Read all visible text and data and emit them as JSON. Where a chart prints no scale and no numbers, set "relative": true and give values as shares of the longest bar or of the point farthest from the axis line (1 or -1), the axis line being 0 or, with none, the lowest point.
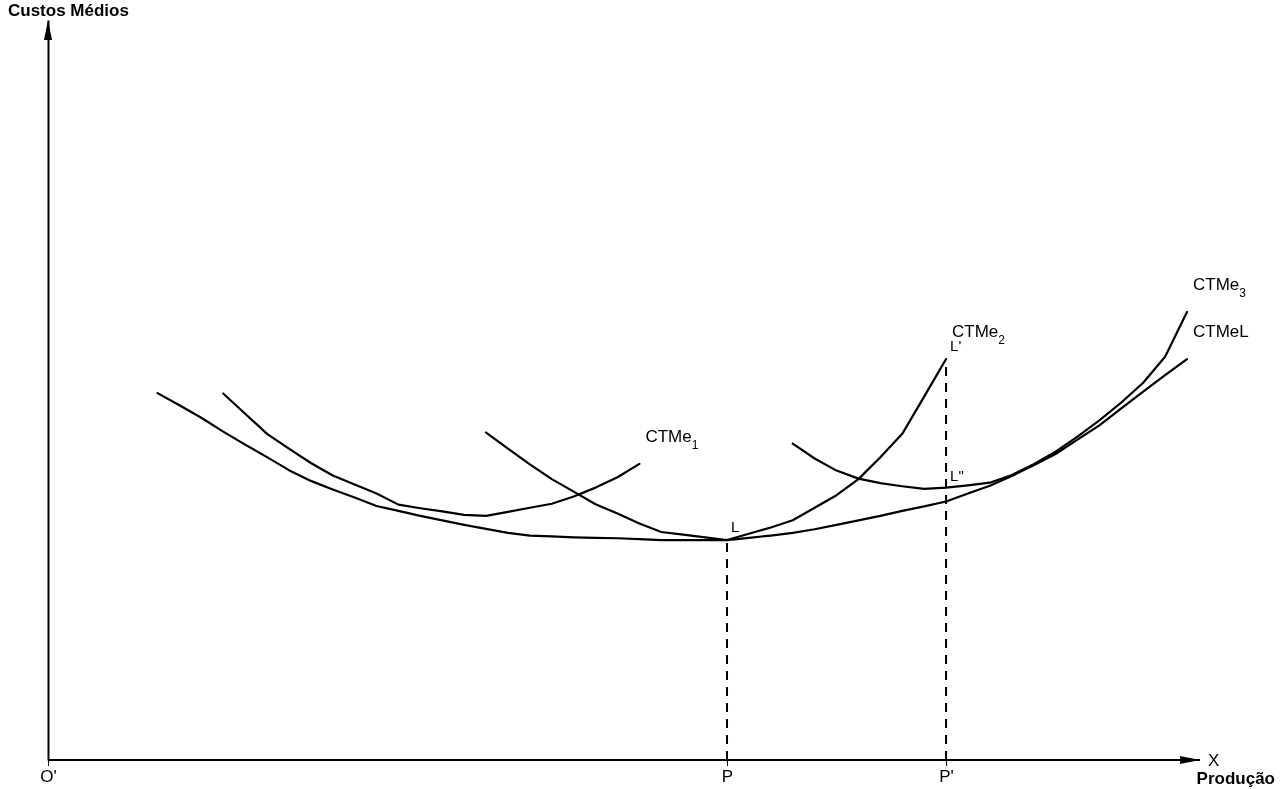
{
  "chart_data": {
    "type": "line",
    "relative": true,
    "xlabel": "Produção",
    "legend": false,
    "marker": "none",
    "categories": [
      "O'",
      null,
      null,
      null,
      null,
      null,
      null,
      null,
      null,
      null,
      null,
      null,
      null,
      null,
      null,
      null,
      null,
      null,
      null,
      null,
      null,
      null,
      null,
      null,
      null,
      null,
      null,
      null,
      null,
      null,
      null,
      "P",
      null,
      null,
      null,
      null,
      null,
      null,
      null,
      null,
      null,
      "P'",
      null,
      null,
      null,
      null,
      null,
      null,
      null,
      null,
      null,
      null,
      null
    ],
    "series": [
      {
        "name": "CTMeL",
        "color": "#000000",
        "values": [
          null,
          null,
          null,
          null,
          null,
          0.819,
          0.792,
          0.764,
          0.733,
          0.704,
          0.676,
          0.647,
          0.623,
          0.604,
          0.586,
          0.567,
          0.556,
          0.545,
          0.535,
          0.525,
          0.516,
          0.507,
          0.501,
          0.499,
          0.497,
          0.496,
          0.495,
          0.493,
          0.491,
          0.491,
          0.491,
          0.491,
          0.496,
          0.501,
          0.507,
          0.515,
          0.525,
          0.535,
          0.545,
          0.556,
          0.566,
          0.577,
          0.595,
          0.612,
          0.634,
          0.658,
          0.683,
          0.715,
          0.747,
          0.785,
          0.822,
          0.859,
          0.895
        ]
      },
      {
        "name": "CTMe$_{1}$",
        "color": "#000000",
        "values": [
          null,
          null,
          null,
          null,
          null,
          null,
          null,
          null,
          0.818,
          0.773,
          0.728,
          0.695,
          0.663,
          0.635,
          0.615,
          0.595,
          0.57,
          0.562,
          0.555,
          0.547,
          0.545,
          0.554,
          0.563,
          0.572,
          0.588,
          0.608,
          0.631,
          0.661,
          null,
          null,
          null,
          null,
          null,
          null,
          null,
          null,
          null,
          null,
          null,
          null,
          null,
          null,
          null,
          null,
          null,
          null,
          null,
          null,
          null,
          null,
          null,
          null,
          null
        ]
      },
      {
        "name": "CTMe$_{2}$",
        "color": "#000000",
        "values": [
          null,
          null,
          null,
          null,
          null,
          null,
          null,
          null,
          null,
          null,
          null,
          null,
          null,
          null,
          null,
          null,
          null,
          null,
          null,
          null,
          0.731,
          0.695,
          0.66,
          0.627,
          0.599,
          0.571,
          0.55,
          0.528,
          0.509,
          0.503,
          0.497,
          0.491,
          0.505,
          0.519,
          0.535,
          0.563,
          0.591,
          0.627,
          0.676,
          0.728,
          0.811,
          0.895,
          null,
          null,
          null,
          null,
          null,
          null,
          null,
          null,
          null,
          null,
          null
        ]
      },
      {
        "name": "CTMe$_{3}$",
        "color": "#000000",
        "values": [
          null,
          null,
          null,
          null,
          null,
          null,
          null,
          null,
          null,
          null,
          null,
          null,
          null,
          null,
          null,
          null,
          null,
          null,
          null,
          null,
          null,
          null,
          null,
          null,
          null,
          null,
          null,
          null,
          null,
          null,
          null,
          null,
          null,
          null,
          0.706,
          0.673,
          0.646,
          0.628,
          0.618,
          0.611,
          0.605,
          0.608,
          0.613,
          0.619,
          0.636,
          0.66,
          0.688,
          0.722,
          0.758,
          0.798,
          0.842,
          0.9,
          1
        ]
      }
    ],
    "ref_lines": [
      {
        "axis": "x",
        "value": "P",
        "color": "#000000",
        "line_style": "dashed"
      },
      {
        "axis": "x",
        "value": "P'",
        "color": "#000000",
        "line_style": "dashed"
      }
    ],
    "annotations": [
      "Custos Médios",
      {
        "text": "L",
        "x": "P",
        "y": 0.491
      },
      {
        "text": "L'",
        "x": "P'",
        "y": 0.895
      },
      {
        "text": "L\"",
        "x": "P'",
        "y": 0.605
      },
      "X"
    ]
  }
}
